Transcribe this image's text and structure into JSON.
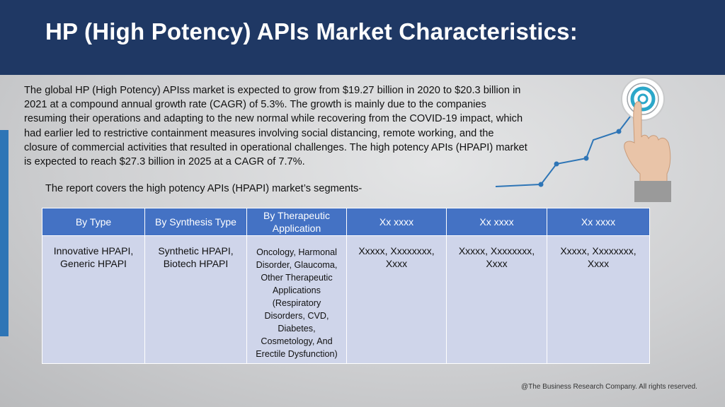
{
  "title": "HP (High Potency) APIs Market  Characteristics:",
  "intro": "The global HP (High Potency) APIss market is expected to grow from $19.27 billion in 2020 to $20.3 billion in 2021 at a compound annual growth rate (CAGR) of 5.3%. The growth is mainly due to the companies resuming their operations and adapting to the new normal while recovering from the COVID-19 impact, which had earlier led to restrictive containment measures involving social distancing, remote working, and the closure of commercial activities that resulted in operational challenges. The high potency APIs (HPAPI) market is expected to reach $27.3 billion in 2025 at a CAGR of 7.7%.",
  "segments_line": "The report covers the high potency APIs (HPAPI) market’s segments-",
  "table": {
    "headers": [
      "By Type",
      "By Synthesis Type",
      "By Therapeutic Application",
      "Xx xxxx",
      "Xx xxxx",
      "Xx xxxx"
    ],
    "cells": [
      "Innovative HPAPI, Generic HPAPI",
      "Synthetic HPAPI, Biotech HPAPI",
      "Oncology, Harmonal Disorder, Glaucoma, Other Therapeutic Applications (Respiratory Disorders, CVD, Diabetes, Cosmetology, And Erectile Dysfunction)",
      "Xxxxx, Xxxxxxxx, Xxxx",
      "Xxxxx, Xxxxxxxx, Xxxx",
      "Xxxxx, Xxxxxxxx, Xxxx"
    ]
  },
  "footer": "@The Business Research Company. All rights reserved.",
  "colors": {
    "header_bg": "#1f3864",
    "table_header": "#4472c4",
    "table_cell": "#cfd5ea",
    "accent": "#2e75b6"
  },
  "icons": [
    "target-icon",
    "pointing-hand-icon",
    "growth-line-icon"
  ]
}
